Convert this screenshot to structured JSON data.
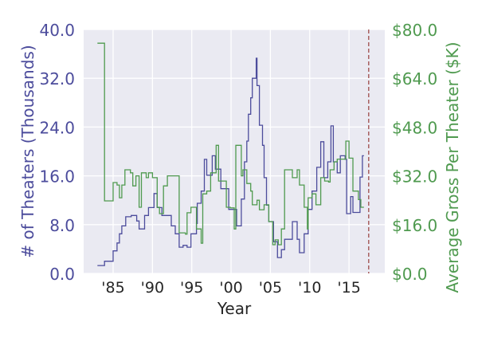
{
  "chart_data": {
    "type": "line",
    "title": "",
    "xlabel": "Year",
    "ylabel": "# of Theaters (Thousands)",
    "y2label": "Average Gross Per Theater ($K)",
    "xlim": [
      1981.25,
      2019.55
    ],
    "ylim": [
      0,
      40
    ],
    "y2lim": [
      0,
      80
    ],
    "grid": true,
    "x_ticks": [
      {
        "value": 1985,
        "label": "'85"
      },
      {
        "value": 1990,
        "label": "'90"
      },
      {
        "value": 1995,
        "label": "'95"
      },
      {
        "value": 2000,
        "label": "'00"
      },
      {
        "value": 2005,
        "label": "'05"
      },
      {
        "value": 2010,
        "label": "'10"
      },
      {
        "value": 2015,
        "label": "'15"
      }
    ],
    "y_ticks": [
      {
        "value": 0,
        "label": "0.0"
      },
      {
        "value": 8,
        "label": "8.0"
      },
      {
        "value": 16,
        "label": "16.0"
      },
      {
        "value": 24,
        "label": "24.0"
      },
      {
        "value": 32,
        "label": "32.0"
      },
      {
        "value": 40,
        "label": "40.0"
      }
    ],
    "y2_ticks": [
      {
        "value": 0,
        "label": "$0.0"
      },
      {
        "value": 16,
        "label": "$16.0"
      },
      {
        "value": 32,
        "label": "$32.0"
      },
      {
        "value": 48,
        "label": "$48.0"
      },
      {
        "value": 64,
        "label": "$64.0"
      },
      {
        "value": 80,
        "label": "$80.0"
      }
    ],
    "vline": {
      "x": 2017.5,
      "style": "dashed"
    },
    "colors": {
      "theaters": "#4c4c9c",
      "gross": "#4f9a4f",
      "vline": "#a86060",
      "bg": "#eaeaf2"
    },
    "series": [
      {
        "name": "Theaters (thousands)",
        "axis": "left",
        "step": true,
        "x": [
          1983.0,
          1983.9,
          1985.0,
          1985.5,
          1985.8,
          1986.1,
          1986.6,
          1987.3,
          1988.0,
          1988.3,
          1989.0,
          1989.5,
          1990.2,
          1990.6,
          1991.2,
          1991.9,
          1992.4,
          1992.9,
          1993.4,
          1993.9,
          1994.4,
          1994.9,
          1995.6,
          1995.7,
          1996.2,
          1996.6,
          1996.9,
          1997.6,
          1998.0,
          1998.7,
          1999.7,
          2000.7,
          2001.3,
          2001.7,
          2002.0,
          2002.2,
          2002.5,
          2002.7,
          2003.2,
          2003.3,
          2003.6,
          2004.0,
          2004.2,
          2004.5,
          2004.8,
          2005.4,
          2005.9,
          2006.4,
          2006.8,
          2007.8,
          2008.4,
          2008.7,
          2009.3,
          2009.8,
          2010.3,
          2010.9,
          2011.4,
          2011.8,
          2012.3,
          2012.7,
          2013.0,
          2013.5,
          2013.9,
          2014.5,
          2014.7,
          2015.2,
          2015.5,
          2016.4,
          2016.7,
          2016.9
        ],
        "y": [
          1.3,
          2.0,
          3.7,
          5.0,
          6.5,
          7.8,
          9.3,
          9.5,
          8.6,
          7.3,
          9.5,
          10.8,
          13.1,
          10.8,
          9.5,
          9.5,
          7.8,
          6.5,
          4.3,
          4.6,
          4.3,
          6.5,
          8.2,
          11.5,
          13.5,
          18.7,
          16.1,
          19.3,
          17.1,
          13.9,
          10.5,
          7.8,
          12.2,
          18.3,
          21.7,
          26.1,
          28.8,
          32.0,
          35.3,
          30.8,
          24.3,
          21.0,
          15.7,
          11.2,
          8.5,
          5.2,
          2.6,
          3.9,
          5.6,
          8.5,
          5.6,
          3.4,
          6.5,
          10.5,
          13.5,
          17.4,
          21.6,
          15.7,
          18.3,
          24.2,
          18.3,
          16.5,
          19.3,
          18.7,
          9.8,
          12.6,
          10.0,
          15.8,
          19.3,
          19.3
        ]
      },
      {
        "name": "Average gross per theater ($K)",
        "axis": "right",
        "step": true,
        "x": [
          1983.0,
          1983.9,
          1985.0,
          1985.5,
          1985.8,
          1986.1,
          1986.5,
          1987.2,
          1987.5,
          1987.9,
          1988.3,
          1988.6,
          1989.2,
          1989.5,
          1990.0,
          1990.6,
          1990.9,
          1991.4,
          1991.9,
          1992.6,
          1993.4,
          1994.2,
          1994.4,
          1994.9,
          1995.6,
          1996.2,
          1996.4,
          1996.9,
          1997.4,
          1998.1,
          1998.4,
          1998.9,
          1999.4,
          1999.9,
          2000.4,
          2000.6,
          2001.3,
          2001.5,
          2002.0,
          2002.5,
          2002.7,
          2003.3,
          2003.6,
          2004.2,
          2004.8,
          2005.3,
          2005.6,
          2006.0,
          2006.4,
          2006.8,
          2007.8,
          2008.4,
          2008.7,
          2009.3,
          2009.7,
          2009.8,
          2010.3,
          2010.8,
          2011.4,
          2011.9,
          2012.4,
          2012.6,
          2013.1,
          2013.5,
          2014.2,
          2014.6,
          2015.0,
          2015.5,
          2016.2,
          2016.5,
          2016.9
        ],
        "y": [
          75.5,
          23.8,
          29.8,
          29.0,
          24.8,
          29.0,
          34.0,
          33.0,
          28.7,
          32.0,
          21.7,
          33.0,
          31.4,
          33.0,
          31.4,
          21.7,
          19.6,
          28.7,
          32.0,
          32.0,
          13.3,
          12.9,
          19.9,
          21.7,
          14.6,
          9.9,
          26.1,
          27.0,
          33.0,
          42.0,
          30.3,
          30.3,
          21.7,
          21.5,
          14.6,
          42.0,
          32.0,
          34.0,
          29.5,
          27.0,
          22.5,
          24.0,
          20.9,
          22.5,
          17.0,
          9.4,
          11.0,
          9.4,
          14.6,
          34.0,
          31.4,
          34.0,
          29.0,
          21.7,
          14.6,
          24.8,
          26.1,
          22.5,
          31.4,
          30.3,
          30.0,
          34.0,
          36.6,
          37.5,
          37.5,
          43.4,
          37.8,
          27.0,
          24.2,
          21.7,
          21.7
        ]
      }
    ]
  }
}
